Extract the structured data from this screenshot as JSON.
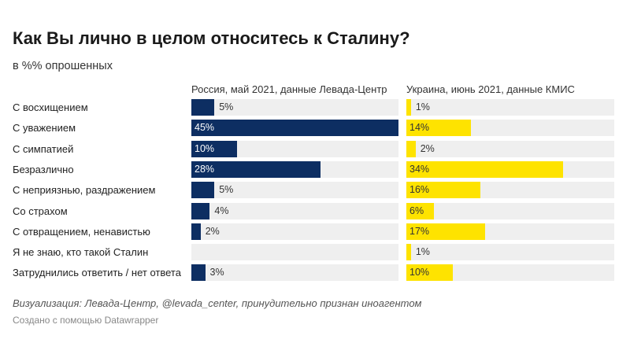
{
  "chart_data": [
    {
      "type": "bar",
      "orientation": "horizontal",
      "title": "Как Вы лично в целом относитесь к Сталину?",
      "subtitle": "в %% опрошенных",
      "categories": [
        "С восхищением",
        "С уважением",
        "С симпатией",
        "Безразлично",
        "С неприязнью, раздражением",
        "Со страхом",
        "С отвращением, ненавистью",
        "Я не знаю, кто такой Сталин",
        "Затруднились ответить / нет ответа"
      ],
      "series": [
        {
          "name": "Россия, май 2021, данные Левада-Центр",
          "values": [
            5,
            45,
            10,
            28,
            5,
            4,
            2,
            null,
            3
          ],
          "color": "#0d2e62"
        },
        {
          "name": "Украина, июнь 2021, данные КМИС",
          "values": [
            1,
            14,
            2,
            34,
            16,
            6,
            17,
            1,
            10
          ],
          "color": "#fee300"
        }
      ],
      "xlim": [
        0,
        45
      ],
      "value_suffix": "%",
      "grid": false
    }
  ],
  "footer": {
    "note": "Визуализация: Левада-Центр, @levada_center, принудительно признан иноагентом",
    "credit": "Создано с помощью Datawrapper"
  }
}
